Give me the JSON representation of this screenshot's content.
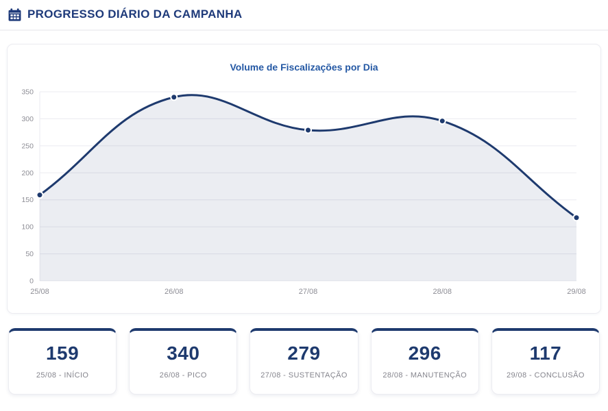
{
  "header": {
    "title": "PROGRESSO DIÁRIO DA CAMPANHA",
    "icon": "calendar"
  },
  "chart_data": {
    "type": "area",
    "title": "Volume de Fiscalizações por Dia",
    "categories": [
      "25/08",
      "26/08",
      "27/08",
      "28/08",
      "29/08"
    ],
    "values": [
      159,
      340,
      279,
      296,
      117
    ],
    "ylim": [
      0,
      350
    ],
    "yticks": [
      0,
      50,
      100,
      150,
      200,
      250,
      300,
      350
    ],
    "grid": true,
    "legend": false,
    "smooth": true,
    "line_color": "#1e3a6e",
    "point_color": "#1e3a6e",
    "fill_color": "rgba(30,58,110,0.09)",
    "grid_color": "#ebebf0",
    "tick_color": "#8d8d95"
  },
  "summary_cards": [
    {
      "value": "159",
      "label": "25/08 - INÍCIO"
    },
    {
      "value": "340",
      "label": "26/08 - PICO"
    },
    {
      "value": "279",
      "label": "27/08 - SUSTENTAÇÃO"
    },
    {
      "value": "296",
      "label": "28/08 - MANUTENÇÃO"
    },
    {
      "value": "117",
      "label": "29/08 - CONCLUSÃO"
    }
  ],
  "colors": {
    "brand_navy": "#1e3a6e",
    "header_navy": "#1e3a7a",
    "chart_title_blue": "#2458a4",
    "muted_gray": "#85858d"
  }
}
